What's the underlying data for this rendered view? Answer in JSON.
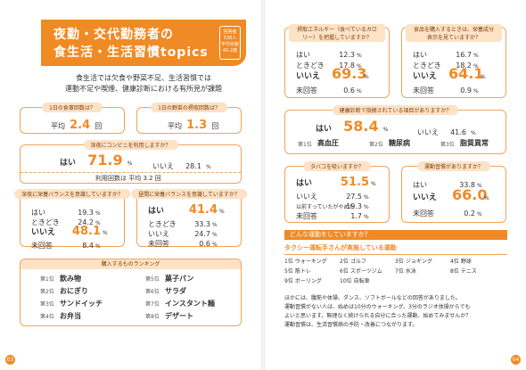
{
  "header": {
    "title_line1": "夜勤・交代勤務者の",
    "title_line2": "食生活・生活習慣topics",
    "respondents_line1": "回答者",
    "respondents_line2": "538人",
    "respondents_line3": "平均年齢",
    "respondents_line4": "40.2歳"
  },
  "intro": {
    "line1": "食生活では欠食や野菜不足、生活習慣では",
    "line2": "運動不足や喫煙、健康診断における有所見が課題"
  },
  "meals": {
    "question": "1日の食事回数は？",
    "prefix": "平均",
    "value": "2.4",
    "unit": "回"
  },
  "veg": {
    "question": "1日の野菜の摂取回数は？",
    "prefix": "平均",
    "value": "1.3",
    "unit": "回"
  },
  "konbini": {
    "question": "深夜にコンビニを利用しますか？",
    "yes_label": "はい",
    "yes_value": "71.9",
    "no_label": "いいえ",
    "no_value": "28.1",
    "unit": "%",
    "note": "利用回数は 平均 3.2 回"
  },
  "late_balance": {
    "question": "深夜に栄養バランスを意識していますか？",
    "rows": [
      {
        "label": "はい",
        "value": "19.3",
        "unit": "%"
      },
      {
        "label": "ときどき",
        "value": "24.2",
        "unit": "%"
      },
      {
        "label": "いいえ",
        "value": "48.1",
        "unit": "%"
      },
      {
        "label": "未回答",
        "value": "8.4",
        "unit": "%"
      }
    ]
  },
  "day_balance": {
    "question": "昼間に栄養バランスを意識していますか？",
    "rows": [
      {
        "label": "はい",
        "value": "41.4",
        "unit": "%"
      },
      {
        "label": "ときどき",
        "value": "33.3",
        "unit": "%"
      },
      {
        "label": "いいえ",
        "value": "24.7",
        "unit": "%"
      },
      {
        "label": "未回答",
        "value": "0.6",
        "unit": "%"
      }
    ]
  },
  "ranking": {
    "title": "購入するものランキング",
    "items": [
      {
        "rank": "第1位",
        "name": "飲み物"
      },
      {
        "rank": "第2位",
        "name": "おにぎり"
      },
      {
        "rank": "第3位",
        "name": "サンドイッチ"
      },
      {
        "rank": "第4位",
        "name": "お弁当"
      },
      {
        "rank": "第5位",
        "name": "菓子パン"
      },
      {
        "rank": "第6位",
        "name": "サラダ"
      },
      {
        "rank": "第7位",
        "name": "インスタント麺"
      },
      {
        "rank": "第8位",
        "name": "デザート"
      }
    ]
  },
  "calorie": {
    "question": "摂取エネルギー（食べているカロリー）を把握していますか？",
    "rows": [
      {
        "label": "はい",
        "value": "12.3",
        "unit": "%"
      },
      {
        "label": "ときどき",
        "value": "17.8",
        "unit": "%"
      },
      {
        "label": "いいえ",
        "value": "69.3",
        "unit": "%"
      },
      {
        "label": "未回答",
        "value": "0.6",
        "unit": "%"
      }
    ]
  },
  "label_check": {
    "question": "食品を購入するときは、栄養成分表示を見ていますか？",
    "rows": [
      {
        "label": "はい",
        "value": "16.7",
        "unit": "%"
      },
      {
        "label": "ときどき",
        "value": "18.2",
        "unit": "%"
      },
      {
        "label": "いいえ",
        "value": "64.1",
        "unit": "%"
      },
      {
        "label": "未回答",
        "value": "0.9",
        "unit": "%"
      }
    ]
  },
  "checkup": {
    "question": "健康診断で指摘されている項目がありますか？",
    "yes_label": "はい",
    "yes_value": "58.4",
    "no_label": "いいえ",
    "no_value": "41.6",
    "unit": "%",
    "items": [
      {
        "rank": "第1位",
        "name": "高血圧"
      },
      {
        "rank": "第2位",
        "name": "糖尿病"
      },
      {
        "rank": "第3位",
        "name": "脂質異常"
      }
    ]
  },
  "smoke": {
    "question": "タバコを吸いますか？",
    "rows": [
      {
        "label": "はい",
        "value": "51.5",
        "unit": "%"
      },
      {
        "label": "いいえ",
        "value": "27.5",
        "unit": "%"
      },
      {
        "label": "以前すっていたがやめた",
        "value": "19.3",
        "unit": "%"
      },
      {
        "label": "未回答",
        "value": "1.7",
        "unit": "%"
      }
    ]
  },
  "exercise": {
    "question": "運動習慣がありますか？",
    "rows": [
      {
        "label": "はい",
        "value": "33.8",
        "unit": "%"
      },
      {
        "label": "いいえ",
        "value": "66.0",
        "unit": "%"
      },
      {
        "label": "未回答",
        "value": "0.2",
        "unit": "%"
      }
    ]
  },
  "sports": {
    "title": "どんな運動をしていますか？",
    "subtitle": "タクシー運転手さんが実施している運動",
    "items": [
      {
        "rank": "1位",
        "name": "ウォーキング"
      },
      {
        "rank": "2位",
        "name": "ゴルフ"
      },
      {
        "rank": "3位",
        "name": "ジョギング"
      },
      {
        "rank": "4位",
        "name": "野球"
      },
      {
        "rank": "5位",
        "name": "筋トレ"
      },
      {
        "rank": "6位",
        "name": "スポーツジム"
      },
      {
        "rank": "7位",
        "name": "水泳"
      },
      {
        "rank": "8位",
        "name": "テニス"
      },
      {
        "rank": "9位",
        "name": "ボーリング"
      },
      {
        "rank": "10位",
        "name": "自転車"
      }
    ]
  },
  "paragraph": {
    "line1": "ほかには、腹筋や体操、ダンス、ソフトボールなどの回答がありました。",
    "line2": "運動習慣がない人は、始めは10分のウォーキング、3分のラジオ体操からでも",
    "line3": "よいと思います。無理なく続けられる自分に合った運動、始めてみませんか？",
    "line4": "運動習慣は、生活習慣病の予防・改善につながります。"
  },
  "pages": {
    "left": "03",
    "right": "04"
  }
}
